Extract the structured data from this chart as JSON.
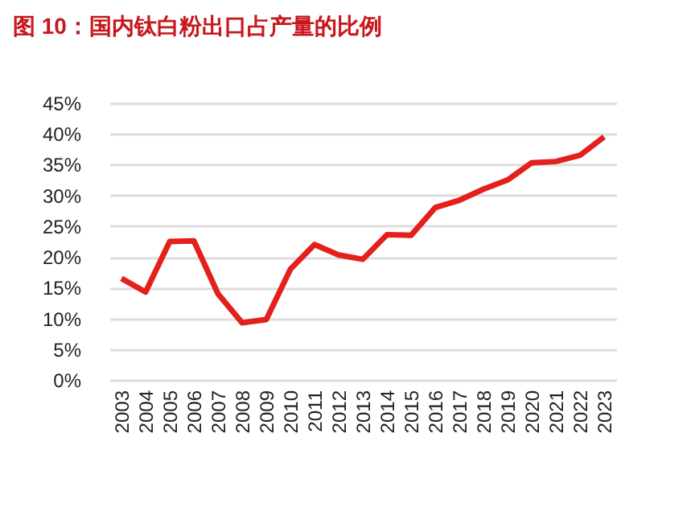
{
  "chart_data": {
    "type": "line",
    "title": "图 10：国内钛白粉出口占产量的比例",
    "categories": [
      "2003",
      "2004",
      "2005",
      "2006",
      "2007",
      "2008",
      "2009",
      "2010",
      "2011",
      "2012",
      "2013",
      "2014",
      "2015",
      "2016",
      "2017",
      "2018",
      "2019",
      "2020",
      "2021",
      "2022",
      "2023"
    ],
    "series": [
      {
        "color": "#e3201b",
        "values": [
          16.5,
          14.3,
          22.5,
          22.6,
          14,
          9.3,
          9.8,
          18,
          22,
          20.3,
          19.6,
          23.6,
          23.5,
          28,
          29.2,
          31,
          32.5,
          35.3,
          35.5,
          36.5,
          39.5
        ]
      }
    ],
    "ylim": [
      0,
      45
    ],
    "yticks": [
      {
        "value": 0,
        "label": "0%"
      },
      {
        "value": 5,
        "label": "5%"
      },
      {
        "value": 10,
        "label": "10%"
      },
      {
        "value": 15,
        "label": "15%"
      },
      {
        "value": 20,
        "label": "20%"
      },
      {
        "value": 25,
        "label": "25%"
      },
      {
        "value": 30,
        "label": "30%"
      },
      {
        "value": 35,
        "label": "35%"
      },
      {
        "value": 40,
        "label": "40%"
      },
      {
        "value": 45,
        "label": "45%"
      }
    ],
    "grid": "y",
    "marker": "none",
    "line_style": "solid"
  }
}
